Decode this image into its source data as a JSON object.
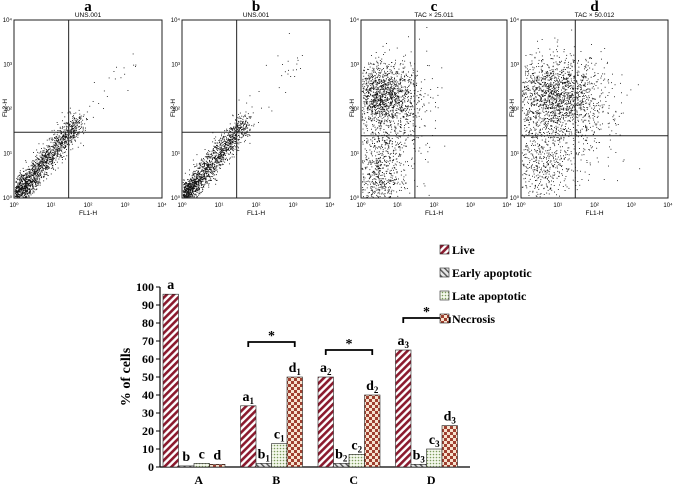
{
  "chart_data": [
    {
      "type": "scatter",
      "panel": "a",
      "header": "UNS.001",
      "xlabel": "FL1-H",
      "ylabel": "FL2-H",
      "x_ticks": [
        "10⁰",
        "10¹",
        "10²",
        "10³",
        "10⁴"
      ],
      "y_ticks": [
        "10⁰",
        "10¹",
        "10²",
        "10³",
        "10⁴"
      ],
      "gate": {
        "x": 30,
        "y": 30
      }
    },
    {
      "type": "scatter",
      "panel": "b",
      "header": "UNS.001",
      "xlabel": "FL1-H",
      "ylabel": "FL2-H",
      "x_ticks": [
        "10⁰",
        "10¹",
        "10²",
        "10³",
        "10⁴"
      ],
      "y_ticks": [
        "10⁰",
        "10¹",
        "10²",
        "10³",
        "10⁴"
      ],
      "gate": {
        "x": 30,
        "y": 30
      }
    },
    {
      "type": "scatter",
      "panel": "c",
      "header": "TAC × 25.011",
      "xlabel": "FL1-H",
      "ylabel": "FL2-H",
      "x_ticks": [
        "10⁰",
        "10¹",
        "10²",
        "10³",
        "10⁴"
      ],
      "y_ticks": [
        "10⁰",
        "10¹",
        "10²",
        "10³",
        "10⁴"
      ],
      "gate": {
        "x": 30,
        "y": 25
      }
    },
    {
      "type": "scatter",
      "panel": "d",
      "header": "TAC × 50.012",
      "xlabel": "FL1-H",
      "ylabel": "FL2-H",
      "x_ticks": [
        "10⁰",
        "10¹",
        "10²",
        "10³",
        "10⁴"
      ],
      "y_ticks": [
        "10⁰",
        "10¹",
        "10²",
        "10³",
        "10⁴"
      ],
      "gate": {
        "x": 30,
        "y": 25
      }
    },
    {
      "type": "bar",
      "categories": [
        "A",
        "B",
        "C",
        "D"
      ],
      "ylabel": "% of cells",
      "ylim": [
        0,
        100
      ],
      "yticks": [
        0,
        10,
        20,
        30,
        40,
        50,
        60,
        70,
        80,
        90,
        100
      ],
      "legend_position": "top-right",
      "series": [
        {
          "name": "Live",
          "values": [
            96,
            34,
            50,
            65
          ],
          "color": "#8b1a2e"
        },
        {
          "name": "Early apoptotic",
          "values": [
            0.6,
            2,
            2,
            1.5
          ],
          "color": "#555555"
        },
        {
          "name": "Late apoptotic",
          "values": [
            2,
            13,
            7,
            10
          ],
          "color": "#7a9a5a"
        },
        {
          "name": "Necrosis",
          "values": [
            1.5,
            50,
            40,
            23
          ],
          "color": "#a04030"
        }
      ],
      "bar_labels": [
        [
          {
            "l": "a",
            "s": ""
          },
          {
            "l": "b",
            "s": ""
          },
          {
            "l": "c",
            "s": ""
          },
          {
            "l": "d",
            "s": ""
          }
        ],
        [
          {
            "l": "a",
            "s": "1"
          },
          {
            "l": "b",
            "s": "1"
          },
          {
            "l": "c",
            "s": "1"
          },
          {
            "l": "d",
            "s": "1"
          }
        ],
        [
          {
            "l": "a",
            "s": "2"
          },
          {
            "l": "b",
            "s": "2"
          },
          {
            "l": "c",
            "s": "2"
          },
          {
            "l": "d",
            "s": "2"
          }
        ],
        [
          {
            "l": "a",
            "s": "3"
          },
          {
            "l": "b",
            "s": "3"
          },
          {
            "l": "c",
            "s": "3"
          },
          {
            "l": "d",
            "s": "3"
          }
        ]
      ],
      "annotations": [
        {
          "text": "*",
          "from_category": "B"
        },
        {
          "text": "*",
          "from_category": "C"
        },
        {
          "text": "*",
          "from_category": "D"
        }
      ]
    }
  ]
}
